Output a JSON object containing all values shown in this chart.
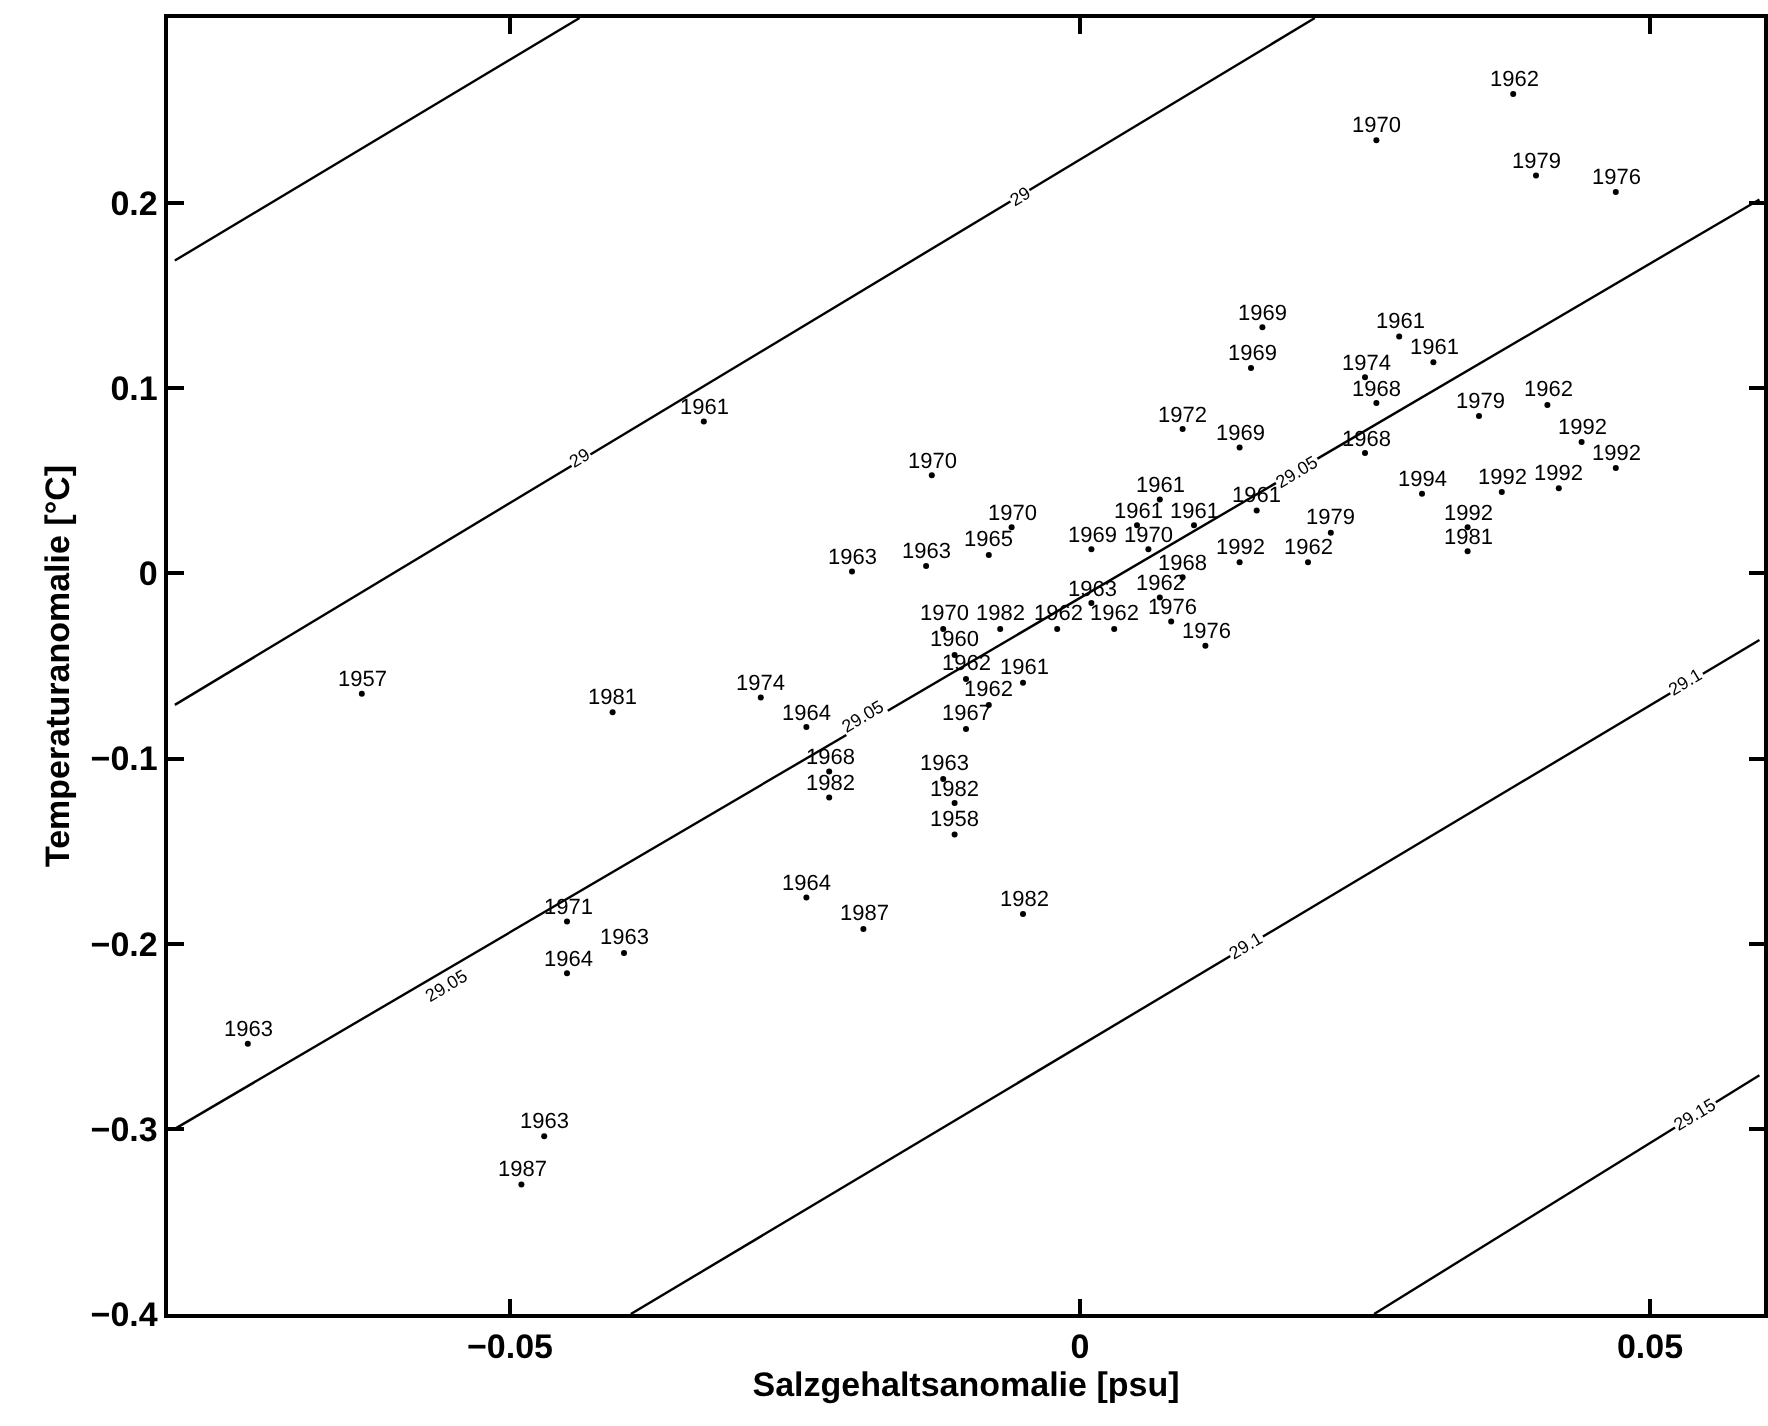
{
  "chart_data": {
    "type": "scatter",
    "xlabel": "Salzgehaltsanomalie [psu]",
    "ylabel": "Temperaturanomalie [°C]",
    "xlim": [
      -0.08,
      0.06
    ],
    "ylim": [
      -0.4,
      0.3
    ],
    "xticks": [
      -0.05,
      0,
      0.05
    ],
    "yticks": [
      -0.4,
      -0.3,
      -0.2,
      -0.1,
      0,
      0.1,
      0.2
    ],
    "tick_labels": "xy",
    "series": [
      {
        "type": "line",
        "color": "#000000",
        "x": [
          -0.0794,
          -0.0439
        ],
        "values": [
          0.169,
          0.3
        ]
      },
      {
        "type": "line",
        "color": "#000000",
        "x": [
          -0.0794,
          0.0206
        ],
        "values": [
          -0.071,
          0.3
        ]
      },
      {
        "type": "line",
        "color": "#000000",
        "x": [
          -0.0794,
          0.0596
        ],
        "values": [
          -0.3,
          0.202
        ]
      },
      {
        "type": "line",
        "color": "#000000",
        "x": [
          -0.0394,
          0.0596
        ],
        "values": [
          -0.4,
          -0.036
        ]
      },
      {
        "type": "line",
        "color": "#000000",
        "x": [
          0.0258,
          0.0596
        ],
        "values": [
          -0.4,
          -0.271
        ]
      },
      {
        "color": "#000000",
        "marker": "circle",
        "x": [
          -0.033,
          0.007,
          0.005,
          0.01,
          0.028,
          0.031,
          0.0155,
          -0.005,
          -0.013,
          -0.006,
          0.006,
          -0.012,
          0.026,
          0.009,
          0.016,
          0.015,
          0.001,
          0.014,
          -0.02,
          -0.0135,
          0.001,
          -0.04,
          -0.073,
          -0.047,
          -0.012,
          -0.008,
          0.014,
          0.044,
          0.047,
          0.037,
          0.042,
          0.034,
          0.009,
          0.026,
          0.025,
          -0.022,
          0.007,
          -0.002,
          0.003,
          0.038,
          0.041,
          0.02,
          -0.01,
          -0.008,
          0.008,
          0.011,
          0.047,
          -0.007,
          -0.022,
          -0.011,
          -0.005,
          -0.011,
          0.04,
          0.035,
          0.022,
          0.025,
          -0.028,
          0.03,
          0.034,
          -0.041,
          -0.063,
          -0.045,
          -0.045,
          -0.024,
          -0.024,
          -0.049,
          -0.019,
          -0.01,
          -0.011
        ],
        "values": [
          0.082,
          0.04,
          0.026,
          0.026,
          0.128,
          0.114,
          0.034,
          -0.059,
          0.053,
          0.025,
          0.013,
          -0.03,
          0.234,
          0.078,
          0.133,
          0.111,
          0.013,
          0.068,
          0.001,
          0.004,
          -0.016,
          -0.205,
          -0.254,
          -0.304,
          -0.111,
          0.01,
          0.006,
          0.071,
          0.057,
          0.044,
          0.046,
          0.025,
          -0.002,
          0.092,
          0.065,
          -0.107,
          -0.013,
          -0.03,
          -0.03,
          0.259,
          0.091,
          0.006,
          -0.057,
          -0.071,
          -0.026,
          -0.039,
          0.206,
          -0.03,
          -0.121,
          -0.124,
          -0.184,
          -0.044,
          0.215,
          0.085,
          0.022,
          0.106,
          -0.067,
          0.043,
          0.012,
          -0.075,
          -0.065,
          -0.188,
          -0.216,
          -0.083,
          -0.175,
          -0.33,
          -0.192,
          -0.084,
          -0.141
        ]
      }
    ],
    "annotations": [
      {
        "text": "29",
        "x": -0.0439,
        "y": 0.062
      },
      {
        "text": "29",
        "x": -0.0052,
        "y": 0.204
      },
      {
        "text": "29.05",
        "x": -0.0556,
        "y": -0.223
      },
      {
        "text": "29.05",
        "x": -0.019,
        "y": -0.077
      },
      {
        "text": "29.05",
        "x": 0.019,
        "y": 0.055
      },
      {
        "text": "29.1",
        "x": 0.0145,
        "y": -0.201
      },
      {
        "text": "29.1",
        "x": 0.0531,
        "y": -0.059
      },
      {
        "text": "29.15",
        "x": 0.054,
        "y": -0.292
      },
      {
        "text": "1961",
        "x": -0.033,
        "y": 0.082
      },
      {
        "text": "1961",
        "x": 0.007,
        "y": 0.04
      },
      {
        "text": "1961",
        "x": 0.005,
        "y": 0.026
      },
      {
        "text": "1961",
        "x": 0.01,
        "y": 0.026
      },
      {
        "text": "1961",
        "x": 0.028,
        "y": 0.128
      },
      {
        "text": "1961",
        "x": 0.031,
        "y": 0.114
      },
      {
        "text": "1961",
        "x": 0.0155,
        "y": 0.034
      },
      {
        "text": "1961",
        "x": -0.005,
        "y": -0.059
      },
      {
        "text": "1970",
        "x": -0.013,
        "y": 0.053
      },
      {
        "text": "1970",
        "x": -0.006,
        "y": 0.025
      },
      {
        "text": "1970",
        "x": 0.006,
        "y": 0.013
      },
      {
        "text": "1970",
        "x": -0.012,
        "y": -0.03
      },
      {
        "text": "1970",
        "x": 0.026,
        "y": 0.234
      },
      {
        "text": "1972",
        "x": 0.009,
        "y": 0.078
      },
      {
        "text": "1969",
        "x": 0.016,
        "y": 0.133
      },
      {
        "text": "1969",
        "x": 0.015,
        "y": 0.111
      },
      {
        "text": "1969",
        "x": 0.001,
        "y": 0.013
      },
      {
        "text": "1969",
        "x": 0.014,
        "y": 0.068
      },
      {
        "text": "1963",
        "x": -0.02,
        "y": 0.001
      },
      {
        "text": "1963",
        "x": -0.0135,
        "y": 0.004
      },
      {
        "text": "1963",
        "x": 0.001,
        "y": -0.016
      },
      {
        "text": "1963",
        "x": -0.04,
        "y": -0.205
      },
      {
        "text": "1963",
        "x": -0.073,
        "y": -0.254
      },
      {
        "text": "1963",
        "x": -0.047,
        "y": -0.304
      },
      {
        "text": "1963",
        "x": -0.012,
        "y": -0.111
      },
      {
        "text": "1965",
        "x": -0.008,
        "y": 0.01
      },
      {
        "text": "1992",
        "x": 0.014,
        "y": 0.006
      },
      {
        "text": "1992",
        "x": 0.044,
        "y": 0.071
      },
      {
        "text": "1992",
        "x": 0.047,
        "y": 0.057
      },
      {
        "text": "1992",
        "x": 0.037,
        "y": 0.044
      },
      {
        "text": "1992",
        "x": 0.042,
        "y": 0.046
      },
      {
        "text": "1992",
        "x": 0.034,
        "y": 0.025
      },
      {
        "text": "1968",
        "x": 0.009,
        "y": -0.002
      },
      {
        "text": "1968",
        "x": 0.026,
        "y": 0.092
      },
      {
        "text": "1968",
        "x": 0.025,
        "y": 0.065
      },
      {
        "text": "1968",
        "x": -0.022,
        "y": -0.107
      },
      {
        "text": "1962",
        "x": 0.007,
        "y": -0.013
      },
      {
        "text": "1962",
        "x": -0.002,
        "y": -0.03
      },
      {
        "text": "1962",
        "x": 0.003,
        "y": -0.03
      },
      {
        "text": "1962",
        "x": 0.038,
        "y": 0.259
      },
      {
        "text": "1962",
        "x": 0.041,
        "y": 0.091
      },
      {
        "text": "1962",
        "x": 0.02,
        "y": 0.006
      },
      {
        "text": "1962",
        "x": -0.01,
        "y": -0.057
      },
      {
        "text": "1962",
        "x": -0.008,
        "y": -0.071
      },
      {
        "text": "1976",
        "x": 0.008,
        "y": -0.026
      },
      {
        "text": "1976",
        "x": 0.011,
        "y": -0.039
      },
      {
        "text": "1976",
        "x": 0.047,
        "y": 0.206
      },
      {
        "text": "1982",
        "x": -0.007,
        "y": -0.03
      },
      {
        "text": "1982",
        "x": -0.022,
        "y": -0.121
      },
      {
        "text": "1982",
        "x": -0.011,
        "y": -0.124
      },
      {
        "text": "1982",
        "x": -0.005,
        "y": -0.184
      },
      {
        "text": "1960",
        "x": -0.011,
        "y": -0.044
      },
      {
        "text": "1979",
        "x": 0.04,
        "y": 0.215
      },
      {
        "text": "1979",
        "x": 0.035,
        "y": 0.085
      },
      {
        "text": "1979",
        "x": 0.022,
        "y": 0.022
      },
      {
        "text": "1974",
        "x": 0.025,
        "y": 0.106
      },
      {
        "text": "1974",
        "x": -0.028,
        "y": -0.067
      },
      {
        "text": "1994",
        "x": 0.03,
        "y": 0.043
      },
      {
        "text": "1981",
        "x": 0.034,
        "y": 0.012
      },
      {
        "text": "1981",
        "x": -0.041,
        "y": -0.075
      },
      {
        "text": "1957",
        "x": -0.063,
        "y": -0.065
      },
      {
        "text": "1971",
        "x": -0.045,
        "y": -0.188
      },
      {
        "text": "1964",
        "x": -0.045,
        "y": -0.216
      },
      {
        "text": "1964",
        "x": -0.024,
        "y": -0.083
      },
      {
        "text": "1964",
        "x": -0.024,
        "y": -0.175
      },
      {
        "text": "1987",
        "x": -0.049,
        "y": -0.33
      },
      {
        "text": "1987",
        "x": -0.019,
        "y": -0.192
      },
      {
        "text": "1967",
        "x": -0.01,
        "y": -0.084
      },
      {
        "text": "1958",
        "x": -0.011,
        "y": -0.141
      }
    ]
  }
}
